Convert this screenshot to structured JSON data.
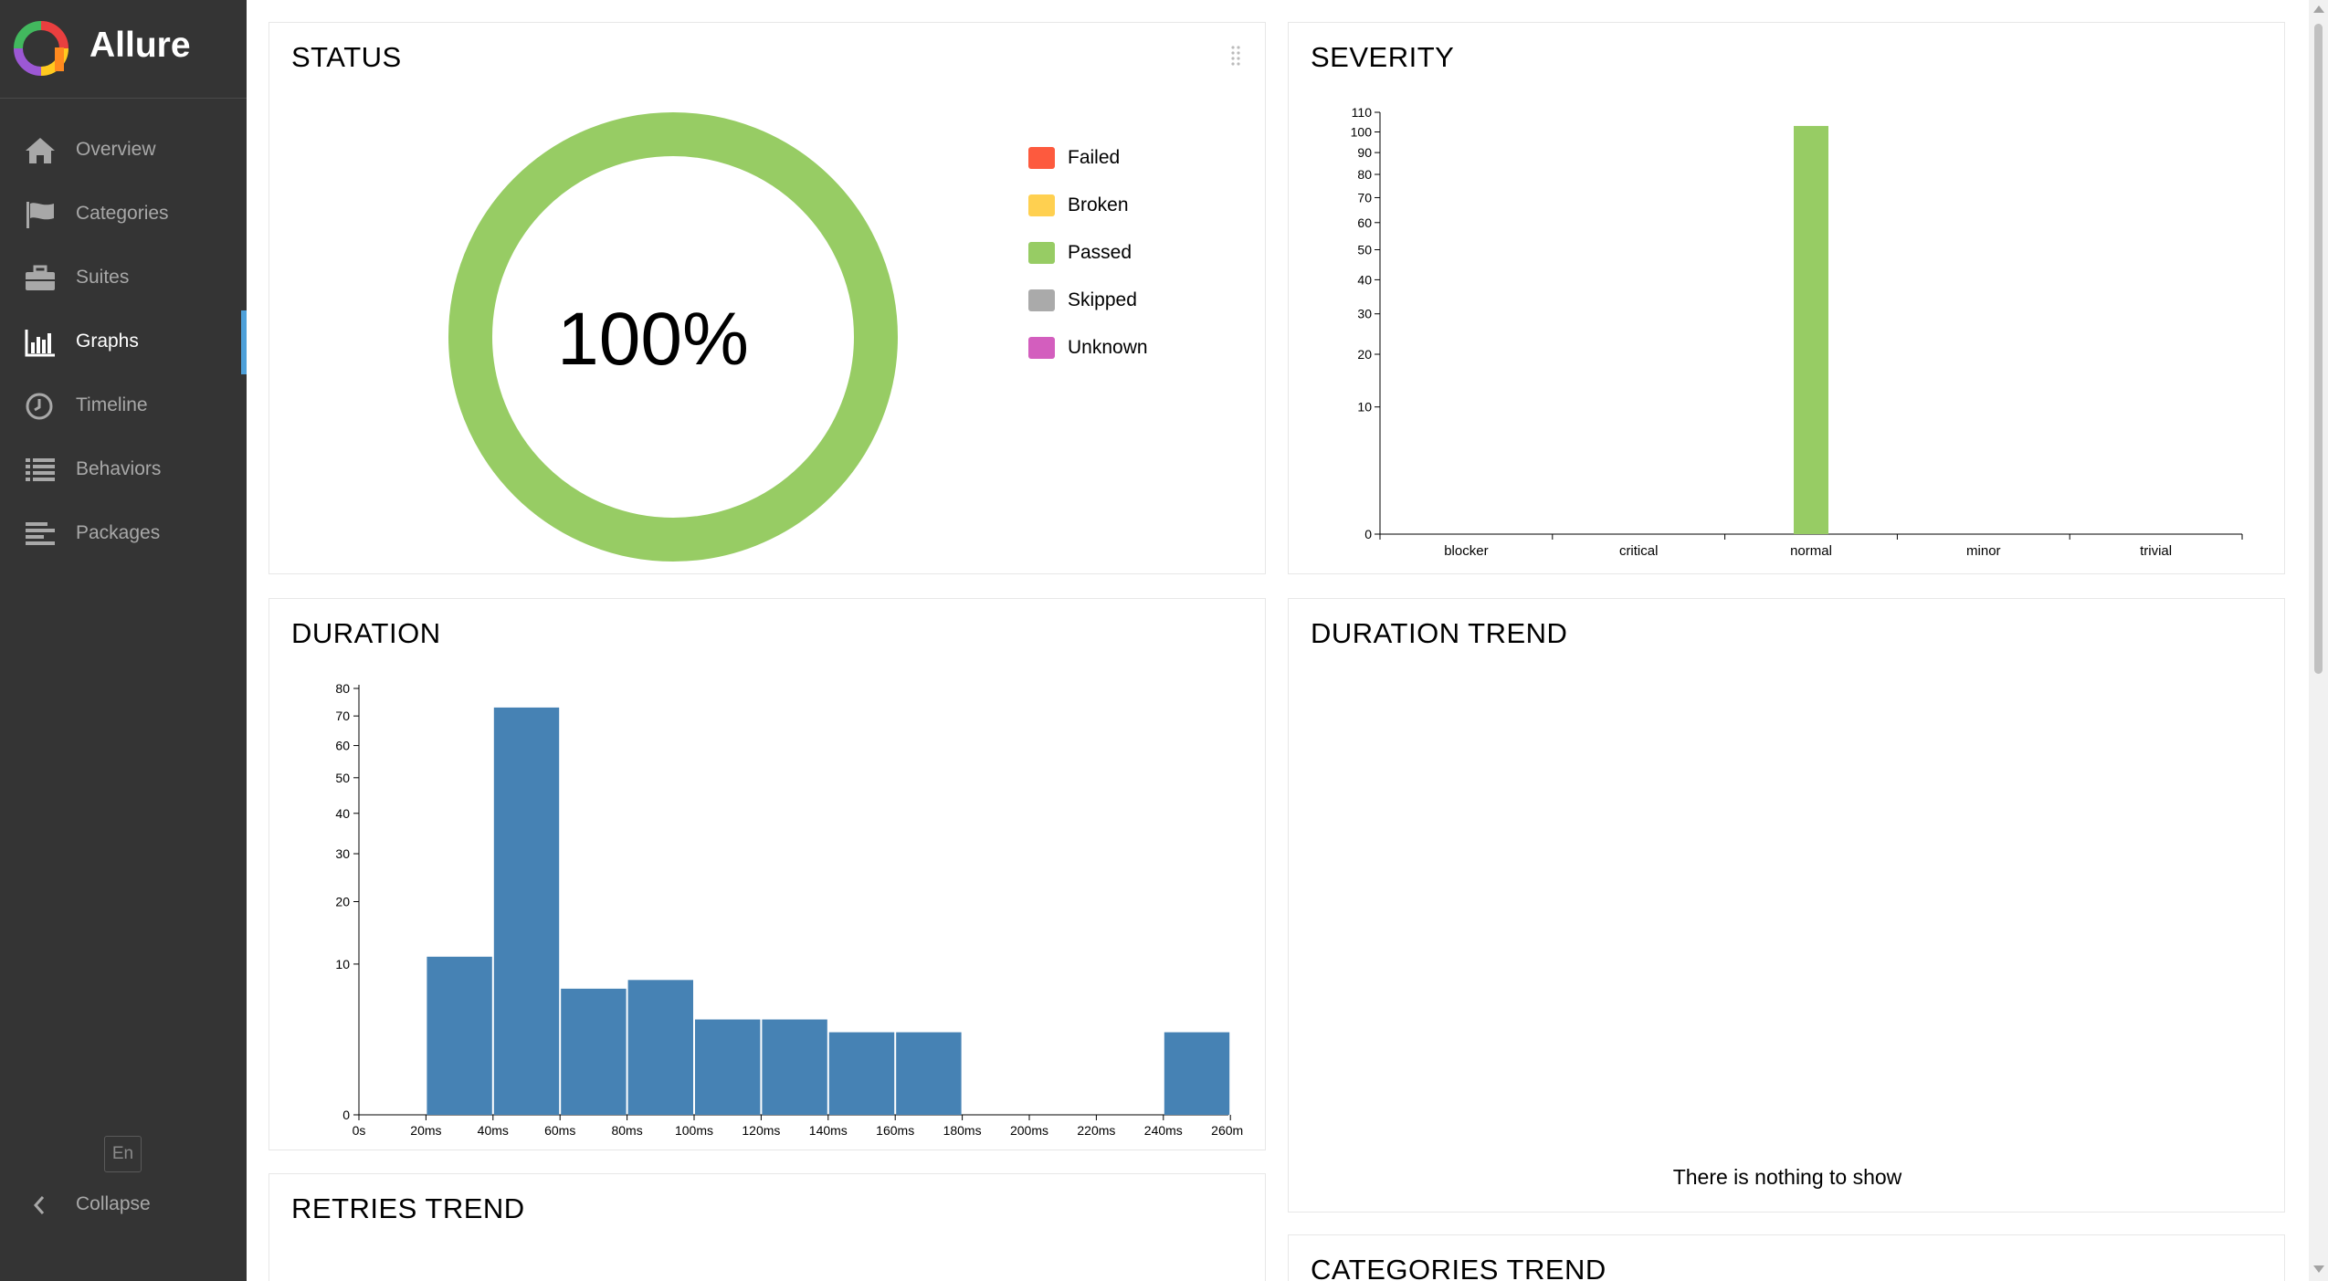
{
  "app": {
    "name": "Allure"
  },
  "sidebar": {
    "items": [
      {
        "label": "Overview",
        "icon": "home-icon"
      },
      {
        "label": "Categories",
        "icon": "flag-icon"
      },
      {
        "label": "Suites",
        "icon": "briefcase-icon"
      },
      {
        "label": "Graphs",
        "icon": "bar-chart-icon",
        "active": true
      },
      {
        "label": "Timeline",
        "icon": "clock-icon"
      },
      {
        "label": "Behaviors",
        "icon": "list-icon"
      },
      {
        "label": "Packages",
        "icon": "align-left-icon"
      }
    ],
    "language": "En",
    "collapse_label": "Collapse"
  },
  "colors": {
    "sidebar_bg": "#343434",
    "active_accent": "#4ea0d9",
    "failed": "#fd5a3e",
    "broken": "#ffd050",
    "passed": "#97cc64",
    "skipped": "#aaaaaa",
    "unknown": "#d35ebe",
    "bar_blue": "#4682b4"
  },
  "widgets": {
    "status": {
      "title": "STATUS",
      "percent_text": "100%",
      "legend": [
        {
          "label": "Failed",
          "color": "#fd5a3e"
        },
        {
          "label": "Broken",
          "color": "#ffd050"
        },
        {
          "label": "Passed",
          "color": "#97cc64"
        },
        {
          "label": "Skipped",
          "color": "#aaaaaa"
        },
        {
          "label": "Unknown",
          "color": "#d35ebe"
        }
      ]
    },
    "severity": {
      "title": "SEVERITY"
    },
    "duration": {
      "title": "DURATION"
    },
    "duration_trend": {
      "title": "DURATION TREND",
      "empty_text": "There is nothing to show"
    },
    "retries_trend": {
      "title": "RETRIES TREND"
    },
    "categories_trend": {
      "title": "CATEGORIES TREND"
    }
  },
  "chart_data": [
    {
      "type": "pie",
      "name": "status",
      "categories": [
        "Failed",
        "Broken",
        "Passed",
        "Skipped",
        "Unknown"
      ],
      "values": [
        0,
        0,
        100,
        0,
        0
      ]
    },
    {
      "type": "bar",
      "name": "severity",
      "categories": [
        "blocker",
        "critical",
        "normal",
        "minor",
        "trivial"
      ],
      "values": [
        0,
        0,
        103,
        0,
        0
      ],
      "y_scale": "sqrt",
      "yticks": [
        0,
        10,
        20,
        30,
        40,
        50,
        60,
        70,
        80,
        90,
        100,
        110
      ],
      "ylim": [
        0,
        110
      ]
    },
    {
      "type": "bar",
      "name": "duration",
      "xticks": [
        "0s",
        "20ms",
        "40ms",
        "60ms",
        "80ms",
        "100ms",
        "120ms",
        "140ms",
        "160ms",
        "180ms",
        "200ms",
        "220ms",
        "240ms",
        "260ms"
      ],
      "bins_start_ms": [
        20,
        40,
        60,
        80,
        100,
        120,
        140,
        160,
        180,
        200,
        220,
        240
      ],
      "values": [
        11,
        73,
        7,
        8,
        4,
        4,
        3,
        3,
        0,
        0,
        0,
        3
      ],
      "y_scale": "sqrt",
      "yticks": [
        0,
        10,
        20,
        30,
        40,
        50,
        60,
        70,
        80
      ],
      "ylim": [
        0,
        80
      ]
    }
  ]
}
